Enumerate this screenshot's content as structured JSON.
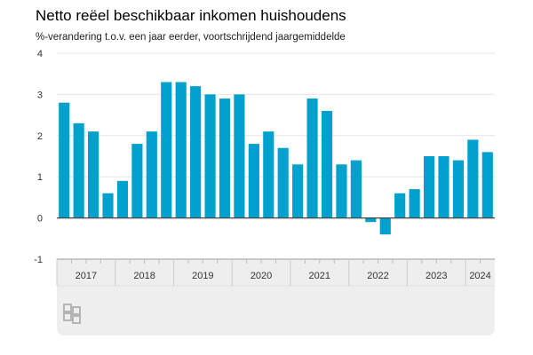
{
  "chart_data": {
    "type": "bar",
    "title": "Netto reëel beschikbaar inkomen huishoudens",
    "subtitle": "%-verandering t.o.v. een jaar eerder, voortschrijdend jaargemiddelde",
    "xlabel": "",
    "ylabel": "",
    "ylim": [
      -1,
      4
    ],
    "yticks": [
      "4",
      "3",
      "2",
      "1",
      "0",
      "-1"
    ],
    "grid": true,
    "color": "#00a1cd",
    "years": [
      {
        "label": "2017",
        "quarters": 4
      },
      {
        "label": "2018",
        "quarters": 4
      },
      {
        "label": "2019",
        "quarters": 4
      },
      {
        "label": "2020",
        "quarters": 4
      },
      {
        "label": "2021",
        "quarters": 4
      },
      {
        "label": "2022",
        "quarters": 4
      },
      {
        "label": "2023",
        "quarters": 4
      },
      {
        "label": "2024",
        "quarters": 2
      }
    ],
    "values": [
      2.8,
      2.3,
      2.1,
      0.6,
      0.9,
      1.8,
      2.1,
      3.3,
      3.3,
      3.2,
      3.0,
      2.9,
      3.0,
      1.8,
      2.1,
      1.7,
      1.3,
      2.9,
      2.6,
      1.3,
      1.4,
      -0.1,
      -0.4,
      0.6,
      0.7,
      1.5,
      1.5,
      1.4,
      1.9,
      1.6
    ]
  }
}
